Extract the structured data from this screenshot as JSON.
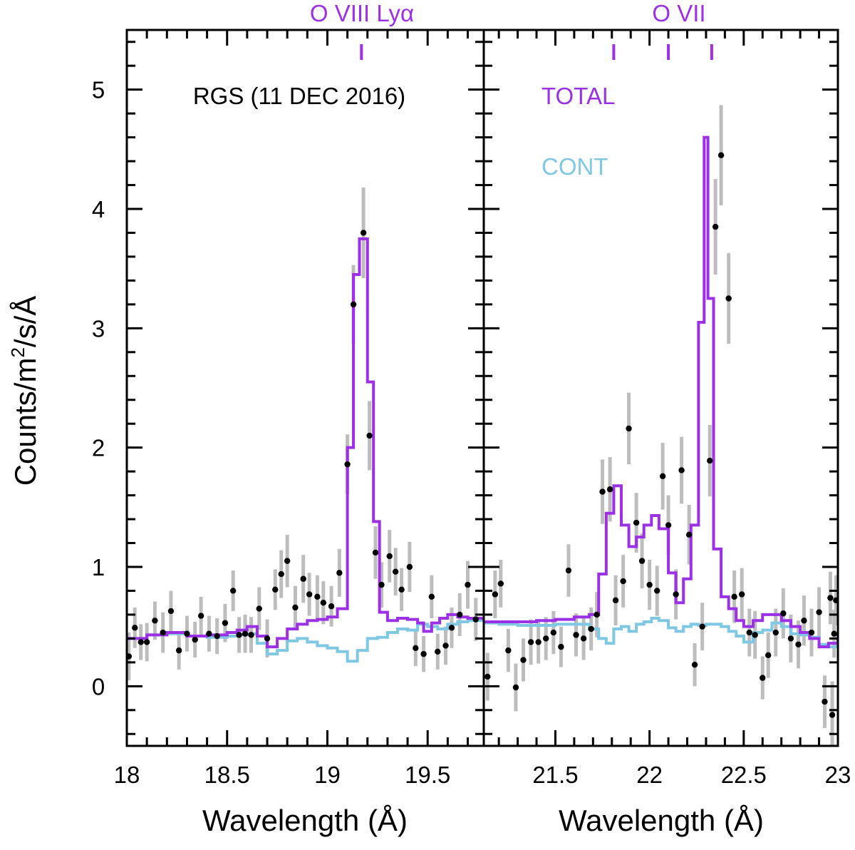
{
  "chart_data": {
    "type": "line",
    "ylabel_parts": [
      "Counts/m",
      "2",
      "/s/Å"
    ],
    "ylim": [
      -0.5,
      5.5
    ],
    "yticks": [
      0,
      1,
      2,
      3,
      4,
      5
    ],
    "yticklabels": [
      "0",
      "1",
      "2",
      "3",
      "4",
      "5"
    ],
    "colors": {
      "total": "#9b30e6",
      "cont": "#7ec8e3",
      "data": "#000000",
      "errorbar": "#bdbdbd"
    },
    "panels": [
      {
        "id": "left",
        "xlabel": "Wavelength (Å)",
        "xlim": [
          18.0,
          19.78
        ],
        "xticks": [
          18.0,
          18.5,
          19.0,
          19.5
        ],
        "xticklabels": [
          "18",
          "18.5",
          "19",
          "19.5"
        ],
        "annotations": {
          "header": "RGS (11 DEC 2016)",
          "line_label": "O VIII Lyα",
          "line_markers": [
            19.17
          ]
        },
        "series": [
          {
            "name": "TOTAL",
            "type": "step",
            "x": [
              18.0,
              18.1,
              18.2,
              18.3,
              18.4,
              18.5,
              18.55,
              18.6,
              18.65,
              18.7,
              18.75,
              18.8,
              18.85,
              18.9,
              18.95,
              19.0,
              19.05,
              19.1,
              19.13,
              19.16,
              19.2,
              19.23,
              19.26,
              19.3,
              19.35,
              19.4,
              19.45,
              19.48,
              19.52,
              19.56,
              19.6,
              19.65,
              19.7,
              19.78
            ],
            "y": [
              0.4,
              0.43,
              0.45,
              0.42,
              0.43,
              0.45,
              0.47,
              0.5,
              0.42,
              0.33,
              0.4,
              0.48,
              0.52,
              0.55,
              0.56,
              0.58,
              0.65,
              2.0,
              3.45,
              3.75,
              2.55,
              1.38,
              0.62,
              0.55,
              0.57,
              0.56,
              0.53,
              0.46,
              0.53,
              0.57,
              0.6,
              0.58,
              0.57,
              0.55
            ]
          },
          {
            "name": "CONT",
            "type": "step",
            "x": [
              18.0,
              18.1,
              18.2,
              18.3,
              18.4,
              18.5,
              18.55,
              18.6,
              18.65,
              18.7,
              18.75,
              18.8,
              18.85,
              18.9,
              18.95,
              19.0,
              19.05,
              19.1,
              19.15,
              19.2,
              19.25,
              19.3,
              19.35,
              19.4,
              19.45,
              19.5,
              19.55,
              19.6,
              19.65,
              19.7,
              19.78
            ],
            "y": [
              0.4,
              0.43,
              0.44,
              0.42,
              0.41,
              0.42,
              0.43,
              0.44,
              0.36,
              0.27,
              0.3,
              0.38,
              0.4,
              0.37,
              0.34,
              0.32,
              0.29,
              0.21,
              0.3,
              0.4,
              0.41,
              0.45,
              0.48,
              0.47,
              0.52,
              0.5,
              0.48,
              0.52,
              0.54,
              0.55,
              0.55
            ]
          }
        ],
        "points": [
          [
            18.01,
            0.25,
            0.2
          ],
          [
            18.04,
            0.49,
            0.17
          ],
          [
            18.07,
            0.37,
            0.15
          ],
          [
            18.1,
            0.37,
            0.16
          ],
          [
            18.14,
            0.55,
            0.16
          ],
          [
            18.18,
            0.45,
            0.17
          ],
          [
            18.22,
            0.63,
            0.17
          ],
          [
            18.26,
            0.3,
            0.16
          ],
          [
            18.3,
            0.44,
            0.15
          ],
          [
            18.34,
            0.39,
            0.15
          ],
          [
            18.37,
            0.59,
            0.16
          ],
          [
            18.41,
            0.44,
            0.15
          ],
          [
            18.45,
            0.42,
            0.15
          ],
          [
            18.49,
            0.53,
            0.16
          ],
          [
            18.53,
            0.8,
            0.17
          ],
          [
            18.56,
            0.43,
            0.15
          ],
          [
            18.59,
            0.44,
            0.16
          ],
          [
            18.62,
            0.43,
            0.15
          ],
          [
            18.66,
            0.65,
            0.18
          ],
          [
            18.7,
            0.4,
            0.16
          ],
          [
            18.74,
            0.81,
            0.17
          ],
          [
            18.77,
            0.94,
            0.2
          ],
          [
            18.8,
            1.05,
            0.22
          ],
          [
            18.84,
            0.66,
            0.18
          ],
          [
            18.88,
            0.9,
            0.2
          ],
          [
            18.91,
            0.77,
            0.18
          ],
          [
            18.95,
            0.75,
            0.18
          ],
          [
            18.98,
            0.7,
            0.18
          ],
          [
            19.02,
            0.67,
            0.17
          ],
          [
            19.06,
            0.95,
            0.2
          ],
          [
            19.1,
            1.86,
            0.25
          ],
          [
            19.13,
            3.2,
            0.33
          ],
          [
            19.18,
            3.8,
            0.38
          ],
          [
            19.21,
            2.1,
            0.29
          ],
          [
            19.24,
            1.12,
            0.22
          ],
          [
            19.27,
            0.85,
            0.19
          ],
          [
            19.31,
            1.09,
            0.22
          ],
          [
            19.34,
            0.96,
            0.2
          ],
          [
            19.37,
            0.81,
            0.18
          ],
          [
            19.41,
            1.0,
            0.21
          ],
          [
            19.44,
            0.32,
            0.15
          ],
          [
            19.48,
            0.27,
            0.15
          ],
          [
            19.52,
            0.75,
            0.18
          ],
          [
            19.55,
            0.29,
            0.15
          ],
          [
            19.59,
            0.34,
            0.16
          ],
          [
            19.62,
            0.49,
            0.17
          ],
          [
            19.66,
            0.6,
            0.18
          ],
          [
            19.7,
            0.85,
            0.2
          ],
          [
            19.74,
            0.56,
            0.18
          ]
        ]
      },
      {
        "id": "right",
        "xlabel": "Wavelength (Å)",
        "xlim": [
          21.12,
          23.0
        ],
        "xticks": [
          21.5,
          22.0,
          22.5,
          23.0
        ],
        "xticklabels": [
          "21.5",
          "22",
          "22.5",
          "23"
        ],
        "annotations": {
          "line_label": "O VII",
          "line_markers": [
            21.81,
            22.1,
            22.33
          ]
        },
        "legend": {
          "placement": "top-left",
          "entries": [
            "TOTAL",
            "CONT"
          ]
        },
        "series": [
          {
            "name": "TOTAL",
            "type": "step",
            "x": [
              21.12,
              21.2,
              21.3,
              21.4,
              21.5,
              21.6,
              21.68,
              21.73,
              21.77,
              21.81,
              21.85,
              21.89,
              21.93,
              21.97,
              22.01,
              22.05,
              22.1,
              22.14,
              22.18,
              22.22,
              22.26,
              22.29,
              22.31,
              22.34,
              22.38,
              22.42,
              22.46,
              22.5,
              22.55,
              22.6,
              22.65,
              22.7,
              22.75,
              22.8,
              22.85,
              22.9,
              22.95,
              23.0
            ],
            "y": [
              0.54,
              0.54,
              0.54,
              0.55,
              0.56,
              0.58,
              0.6,
              0.94,
              1.45,
              1.68,
              1.35,
              1.17,
              1.25,
              1.35,
              1.43,
              1.32,
              0.95,
              0.7,
              0.9,
              1.35,
              3.05,
              4.6,
              3.25,
              1.15,
              0.75,
              0.65,
              0.55,
              0.5,
              0.55,
              0.6,
              0.6,
              0.55,
              0.5,
              0.45,
              0.4,
              0.33,
              0.36,
              0.43
            ]
          },
          {
            "name": "CONT",
            "type": "step",
            "x": [
              21.12,
              21.2,
              21.3,
              21.4,
              21.5,
              21.6,
              21.68,
              21.73,
              21.77,
              21.81,
              21.85,
              21.89,
              21.93,
              21.97,
              22.01,
              22.05,
              22.1,
              22.14,
              22.18,
              22.22,
              22.26,
              22.3,
              22.34,
              22.38,
              22.42,
              22.46,
              22.5,
              22.55,
              22.6,
              22.65,
              22.7,
              22.75,
              22.8,
              22.85,
              22.9,
              22.95,
              23.0
            ],
            "y": [
              0.53,
              0.52,
              0.51,
              0.51,
              0.52,
              0.52,
              0.48,
              0.4,
              0.36,
              0.48,
              0.5,
              0.46,
              0.52,
              0.54,
              0.57,
              0.55,
              0.49,
              0.46,
              0.5,
              0.52,
              0.51,
              0.52,
              0.52,
              0.5,
              0.46,
              0.42,
              0.37,
              0.45,
              0.47,
              0.53,
              0.5,
              0.44,
              0.43,
              0.41,
              0.35,
              0.33,
              0.4
            ]
          }
        ],
        "points": [
          [
            21.14,
            0.08,
            0.2
          ],
          [
            21.18,
            0.77,
            0.2
          ],
          [
            21.21,
            0.86,
            0.2
          ],
          [
            21.25,
            0.3,
            0.18
          ],
          [
            21.29,
            -0.01,
            0.2
          ],
          [
            21.33,
            0.22,
            0.18
          ],
          [
            21.37,
            0.37,
            0.19
          ],
          [
            21.41,
            0.37,
            0.18
          ],
          [
            21.45,
            0.4,
            0.18
          ],
          [
            21.49,
            0.45,
            0.18
          ],
          [
            21.53,
            0.33,
            0.17
          ],
          [
            21.57,
            0.97,
            0.22
          ],
          [
            21.61,
            0.43,
            0.18
          ],
          [
            21.65,
            0.4,
            0.18
          ],
          [
            21.69,
            0.48,
            0.18
          ],
          [
            21.72,
            0.6,
            0.19
          ],
          [
            21.75,
            1.63,
            0.27
          ],
          [
            21.79,
            1.65,
            0.27
          ],
          [
            21.82,
            0.72,
            0.21
          ],
          [
            21.86,
            0.88,
            0.22
          ],
          [
            21.89,
            2.16,
            0.3
          ],
          [
            21.93,
            1.37,
            0.25
          ],
          [
            21.96,
            1.05,
            0.23
          ],
          [
            22.0,
            0.85,
            0.21
          ],
          [
            22.04,
            0.8,
            0.21
          ],
          [
            22.07,
            1.76,
            0.28
          ],
          [
            22.1,
            1.35,
            0.25
          ],
          [
            22.14,
            0.77,
            0.21
          ],
          [
            22.17,
            1.81,
            0.28
          ],
          [
            22.21,
            1.27,
            0.25
          ],
          [
            22.24,
            0.18,
            0.18
          ],
          [
            22.28,
            0.5,
            0.2
          ],
          [
            22.32,
            1.89,
            0.3
          ],
          [
            22.35,
            3.85,
            0.4
          ],
          [
            22.38,
            4.45,
            0.42
          ],
          [
            22.42,
            3.25,
            0.38
          ],
          [
            22.45,
            0.75,
            0.22
          ],
          [
            22.49,
            0.77,
            0.22
          ],
          [
            22.53,
            0.45,
            0.2
          ],
          [
            22.56,
            0.43,
            0.2
          ],
          [
            22.6,
            0.07,
            0.18
          ],
          [
            22.63,
            0.26,
            0.19
          ],
          [
            22.67,
            0.45,
            0.2
          ],
          [
            22.71,
            0.61,
            0.21
          ],
          [
            22.75,
            0.4,
            0.2
          ],
          [
            22.79,
            0.35,
            0.2
          ],
          [
            22.82,
            0.55,
            0.21
          ],
          [
            22.86,
            0.45,
            0.2
          ],
          [
            22.9,
            0.62,
            0.21
          ],
          [
            22.93,
            -0.13,
            0.22
          ],
          [
            22.96,
            0.74,
            0.22
          ],
          [
            22.97,
            -0.24,
            0.28
          ],
          [
            22.98,
            0.44,
            0.2
          ],
          [
            22.99,
            0.72,
            0.21
          ]
        ]
      }
    ]
  }
}
